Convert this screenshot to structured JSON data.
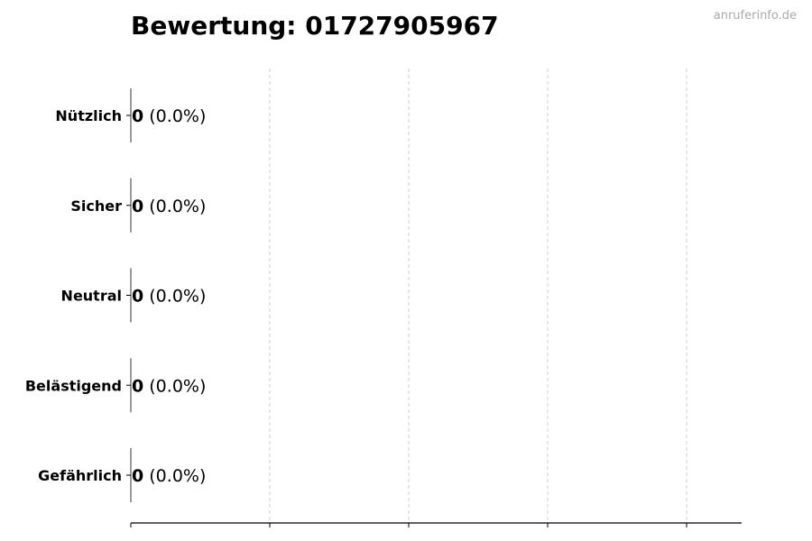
{
  "title": "Bewertung: 01727905967",
  "watermark": "anruferinfo.de",
  "chart_data": {
    "type": "bar",
    "orientation": "horizontal",
    "title": "Bewertung: 01727905967",
    "categories": [
      "Nützlich",
      "Sicher",
      "Neutral",
      "Belästigend",
      "Gefährlich"
    ],
    "values": [
      0,
      0,
      0,
      0,
      0
    ],
    "percent_labels": [
      "(0.0%)",
      "(0.0%)",
      "(0.0%)",
      "(0.0%)",
      "(0.0%)"
    ],
    "value_labels": [
      "0",
      "0",
      "0",
      "0",
      "0"
    ],
    "xlabel": "",
    "ylabel": "",
    "grid": "x-dashed",
    "x_tick_labels_shown": false
  }
}
